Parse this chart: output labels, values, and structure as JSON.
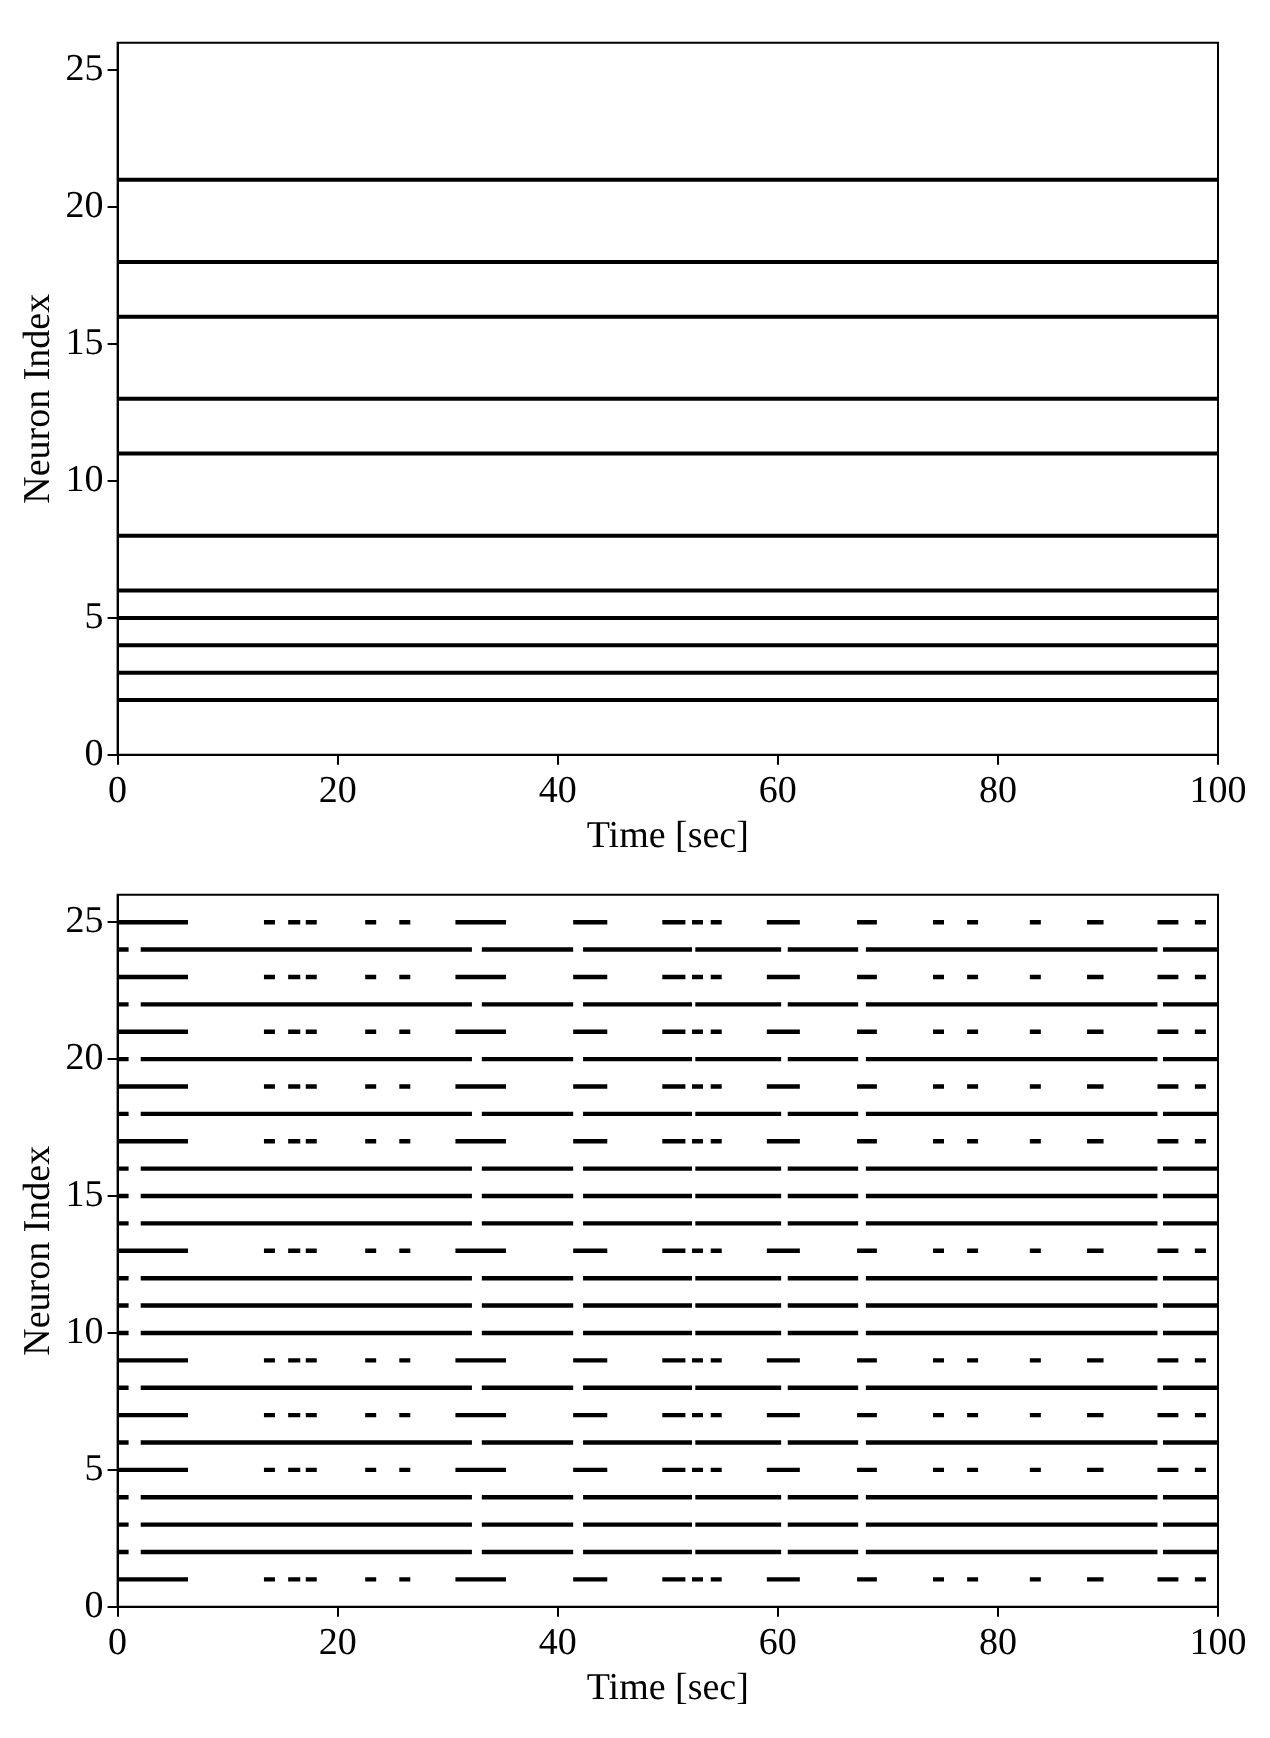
{
  "chart_data": [
    {
      "type": "line",
      "xlabel": "Time [sec]",
      "ylabel": "Neuron Index",
      "xlim": [
        0,
        100
      ],
      "xticks": [
        0,
        20,
        40,
        60,
        80,
        100
      ],
      "ylim": [
        0,
        26
      ],
      "yticks": [
        0,
        5,
        10,
        15,
        20,
        25
      ],
      "grid": false,
      "legend": false,
      "marker": "none",
      "line_style": "solid",
      "x": [
        0,
        100
      ],
      "series": [
        {
          "color": "#000000",
          "values": [
            2,
            2
          ]
        },
        {
          "color": "#000000",
          "values": [
            3,
            3
          ]
        },
        {
          "color": "#000000",
          "values": [
            4,
            4
          ]
        },
        {
          "color": "#000000",
          "values": [
            5,
            5
          ]
        },
        {
          "color": "#000000",
          "values": [
            6,
            6
          ]
        },
        {
          "color": "#000000",
          "values": [
            8,
            8
          ]
        },
        {
          "color": "#000000",
          "values": [
            11,
            11
          ]
        },
        {
          "color": "#000000",
          "values": [
            13,
            13
          ]
        },
        {
          "color": "#000000",
          "values": [
            16,
            16
          ]
        },
        {
          "color": "#000000",
          "values": [
            18,
            18
          ]
        },
        {
          "color": "#000000",
          "values": [
            21,
            21
          ]
        }
      ]
    },
    {
      "type": "line",
      "xlabel": "Time [sec]",
      "ylabel": "Neuron Index",
      "xlim": [
        0,
        100
      ],
      "xticks": [
        0,
        20,
        40,
        60,
        80,
        100
      ],
      "ylim": [
        0,
        26
      ],
      "yticks": [
        0,
        5,
        10,
        15,
        20,
        25
      ],
      "grid": false,
      "legend": false,
      "marker": "none",
      "line_style": "solid",
      "series": [
        {
          "color": "#000000",
          "x": [
            0,
            6.4,
            null,
            13.3,
            14.3,
            null,
            15.5,
            16.6,
            null,
            17.1,
            18.1,
            null,
            22.5,
            23.5,
            null,
            25.6,
            26.6,
            null,
            30.7,
            35.3,
            null,
            41.4,
            44.5,
            null,
            49.5,
            51.6,
            null,
            52.2,
            53.2,
            null,
            53.9,
            54.9,
            null,
            59,
            62,
            null,
            67.2,
            69,
            null,
            74.1,
            75.1,
            null,
            77.2,
            78.2,
            null,
            82.9,
            83.9,
            null,
            88.1,
            89.6,
            null,
            94.5,
            96.4,
            null,
            97.9,
            98.9
          ],
          "values": [
            1,
            1,
            null,
            1,
            1,
            null,
            1,
            1,
            null,
            1,
            1,
            null,
            1,
            1,
            null,
            1,
            1,
            null,
            1,
            1,
            null,
            1,
            1,
            null,
            1,
            1,
            null,
            1,
            1,
            null,
            1,
            1,
            null,
            1,
            1,
            null,
            1,
            1,
            null,
            1,
            1,
            null,
            1,
            1,
            null,
            1,
            1,
            null,
            1,
            1,
            null,
            1,
            1,
            null,
            1,
            1
          ]
        },
        {
          "color": "#000000",
          "x": [
            0,
            1,
            null,
            2.1,
            32.2,
            null,
            33.1,
            41.4,
            null,
            42.3,
            52.2,
            null,
            52.5,
            60.3,
            null,
            60.9,
            67.3,
            null,
            68,
            94.5,
            null,
            95,
            100
          ],
          "values": [
            2,
            2,
            null,
            2,
            2,
            null,
            2,
            2,
            null,
            2,
            2,
            null,
            2,
            2,
            null,
            2,
            2,
            null,
            2,
            2,
            null,
            2,
            2
          ]
        },
        {
          "color": "#000000",
          "x": [
            0,
            1,
            null,
            2.1,
            32.2,
            null,
            33.1,
            41.4,
            null,
            42.3,
            52.2,
            null,
            52.5,
            60.3,
            null,
            60.9,
            67.3,
            null,
            68,
            94.5,
            null,
            95,
            100
          ],
          "values": [
            3,
            3,
            null,
            3,
            3,
            null,
            3,
            3,
            null,
            3,
            3,
            null,
            3,
            3,
            null,
            3,
            3,
            null,
            3,
            3,
            null,
            3,
            3
          ]
        },
        {
          "color": "#000000",
          "x": [
            0,
            1,
            null,
            2.1,
            32.2,
            null,
            33.1,
            41.4,
            null,
            42.3,
            52.2,
            null,
            52.5,
            60.3,
            null,
            60.9,
            67.3,
            null,
            68,
            94.5,
            null,
            95,
            100
          ],
          "values": [
            4,
            4,
            null,
            4,
            4,
            null,
            4,
            4,
            null,
            4,
            4,
            null,
            4,
            4,
            null,
            4,
            4,
            null,
            4,
            4,
            null,
            4,
            4
          ]
        },
        {
          "color": "#000000",
          "x": [
            0,
            6.4,
            null,
            13.3,
            14.3,
            null,
            15.5,
            16.6,
            null,
            17.1,
            18.1,
            null,
            22.5,
            23.5,
            null,
            25.6,
            26.6,
            null,
            30.7,
            35.3,
            null,
            41.4,
            44.5,
            null,
            49.5,
            51.6,
            null,
            52.2,
            53.2,
            null,
            53.9,
            54.9,
            null,
            59,
            62,
            null,
            67.2,
            69,
            null,
            74.1,
            75.1,
            null,
            77.2,
            78.2,
            null,
            82.9,
            83.9,
            null,
            88.1,
            89.6,
            null,
            94.5,
            96.4,
            null,
            97.9,
            98.9
          ],
          "values": [
            5,
            5,
            null,
            5,
            5,
            null,
            5,
            5,
            null,
            5,
            5,
            null,
            5,
            5,
            null,
            5,
            5,
            null,
            5,
            5,
            null,
            5,
            5,
            null,
            5,
            5,
            null,
            5,
            5,
            null,
            5,
            5,
            null,
            5,
            5,
            null,
            5,
            5,
            null,
            5,
            5,
            null,
            5,
            5,
            null,
            5,
            5,
            null,
            5,
            5,
            null,
            5,
            5,
            null,
            5,
            5
          ]
        },
        {
          "color": "#000000",
          "x": [
            0,
            1,
            null,
            2.1,
            32.2,
            null,
            33.1,
            41.4,
            null,
            42.3,
            52.2,
            null,
            52.5,
            60.3,
            null,
            60.9,
            67.3,
            null,
            68,
            94.5,
            null,
            95,
            100
          ],
          "values": [
            6,
            6,
            null,
            6,
            6,
            null,
            6,
            6,
            null,
            6,
            6,
            null,
            6,
            6,
            null,
            6,
            6,
            null,
            6,
            6,
            null,
            6,
            6
          ]
        },
        {
          "color": "#000000",
          "x": [
            0,
            6.4,
            null,
            13.3,
            14.3,
            null,
            15.5,
            16.6,
            null,
            17.1,
            18.1,
            null,
            22.5,
            23.5,
            null,
            25.6,
            26.6,
            null,
            30.7,
            35.3,
            null,
            41.4,
            44.5,
            null,
            49.5,
            51.6,
            null,
            52.2,
            53.2,
            null,
            53.9,
            54.9,
            null,
            59,
            62,
            null,
            67.2,
            69,
            null,
            74.1,
            75.1,
            null,
            77.2,
            78.2,
            null,
            82.9,
            83.9,
            null,
            88.1,
            89.6,
            null,
            94.5,
            96.4,
            null,
            97.9,
            98.9
          ],
          "values": [
            7,
            7,
            null,
            7,
            7,
            null,
            7,
            7,
            null,
            7,
            7,
            null,
            7,
            7,
            null,
            7,
            7,
            null,
            7,
            7,
            null,
            7,
            7,
            null,
            7,
            7,
            null,
            7,
            7,
            null,
            7,
            7,
            null,
            7,
            7,
            null,
            7,
            7,
            null,
            7,
            7,
            null,
            7,
            7,
            null,
            7,
            7,
            null,
            7,
            7,
            null,
            7,
            7,
            null,
            7,
            7
          ]
        },
        {
          "color": "#000000",
          "x": [
            0,
            1,
            null,
            2.1,
            32.2,
            null,
            33.1,
            41.4,
            null,
            42.3,
            52.2,
            null,
            52.5,
            60.3,
            null,
            60.9,
            67.3,
            null,
            68,
            94.5,
            null,
            95,
            100
          ],
          "values": [
            8,
            8,
            null,
            8,
            8,
            null,
            8,
            8,
            null,
            8,
            8,
            null,
            8,
            8,
            null,
            8,
            8,
            null,
            8,
            8,
            null,
            8,
            8
          ]
        },
        {
          "color": "#000000",
          "x": [
            0,
            6.4,
            null,
            13.3,
            14.3,
            null,
            15.5,
            16.6,
            null,
            17.1,
            18.1,
            null,
            22.5,
            23.5,
            null,
            25.6,
            26.6,
            null,
            30.7,
            35.3,
            null,
            41.4,
            44.5,
            null,
            49.5,
            51.6,
            null,
            52.2,
            53.2,
            null,
            53.9,
            54.9,
            null,
            59,
            62,
            null,
            67.2,
            69,
            null,
            74.1,
            75.1,
            null,
            77.2,
            78.2,
            null,
            82.9,
            83.9,
            null,
            88.1,
            89.6,
            null,
            94.5,
            96.4,
            null,
            97.9,
            98.9
          ],
          "values": [
            9,
            9,
            null,
            9,
            9,
            null,
            9,
            9,
            null,
            9,
            9,
            null,
            9,
            9,
            null,
            9,
            9,
            null,
            9,
            9,
            null,
            9,
            9,
            null,
            9,
            9,
            null,
            9,
            9,
            null,
            9,
            9,
            null,
            9,
            9,
            null,
            9,
            9,
            null,
            9,
            9,
            null,
            9,
            9,
            null,
            9,
            9,
            null,
            9,
            9,
            null,
            9,
            9,
            null,
            9,
            9
          ]
        },
        {
          "color": "#000000",
          "x": [
            0,
            1,
            null,
            2.1,
            32.2,
            null,
            33.1,
            41.4,
            null,
            42.3,
            52.2,
            null,
            52.5,
            60.3,
            null,
            60.9,
            67.3,
            null,
            68,
            94.5,
            null,
            95,
            100
          ],
          "values": [
            10,
            10,
            null,
            10,
            10,
            null,
            10,
            10,
            null,
            10,
            10,
            null,
            10,
            10,
            null,
            10,
            10,
            null,
            10,
            10,
            null,
            10,
            10
          ]
        },
        {
          "color": "#000000",
          "x": [
            0,
            1,
            null,
            2.1,
            32.2,
            null,
            33.1,
            41.4,
            null,
            42.3,
            52.2,
            null,
            52.5,
            60.3,
            null,
            60.9,
            67.3,
            null,
            68,
            94.5,
            null,
            95,
            100
          ],
          "values": [
            11,
            11,
            null,
            11,
            11,
            null,
            11,
            11,
            null,
            11,
            11,
            null,
            11,
            11,
            null,
            11,
            11,
            null,
            11,
            11,
            null,
            11,
            11
          ]
        },
        {
          "color": "#000000",
          "x": [
            0,
            1,
            null,
            2.1,
            32.2,
            null,
            33.1,
            41.4,
            null,
            42.3,
            52.2,
            null,
            52.5,
            60.3,
            null,
            60.9,
            67.3,
            null,
            68,
            94.5,
            null,
            95,
            100
          ],
          "values": [
            12,
            12,
            null,
            12,
            12,
            null,
            12,
            12,
            null,
            12,
            12,
            null,
            12,
            12,
            null,
            12,
            12,
            null,
            12,
            12,
            null,
            12,
            12
          ]
        },
        {
          "color": "#000000",
          "x": [
            0,
            6.4,
            null,
            13.3,
            14.3,
            null,
            15.5,
            16.6,
            null,
            17.1,
            18.1,
            null,
            22.5,
            23.5,
            null,
            25.6,
            26.6,
            null,
            30.7,
            35.3,
            null,
            41.4,
            44.5,
            null,
            49.5,
            51.6,
            null,
            52.2,
            53.2,
            null,
            53.9,
            54.9,
            null,
            59,
            62,
            null,
            67.2,
            69,
            null,
            74.1,
            75.1,
            null,
            77.2,
            78.2,
            null,
            82.9,
            83.9,
            null,
            88.1,
            89.6,
            null,
            94.5,
            96.4,
            null,
            97.9,
            98.9
          ],
          "values": [
            13,
            13,
            null,
            13,
            13,
            null,
            13,
            13,
            null,
            13,
            13,
            null,
            13,
            13,
            null,
            13,
            13,
            null,
            13,
            13,
            null,
            13,
            13,
            null,
            13,
            13,
            null,
            13,
            13,
            null,
            13,
            13,
            null,
            13,
            13,
            null,
            13,
            13,
            null,
            13,
            13,
            null,
            13,
            13,
            null,
            13,
            13,
            null,
            13,
            13,
            null,
            13,
            13,
            null,
            13,
            13
          ]
        },
        {
          "color": "#000000",
          "x": [
            0,
            1,
            null,
            2.1,
            32.2,
            null,
            33.1,
            41.4,
            null,
            42.3,
            52.2,
            null,
            52.5,
            60.3,
            null,
            60.9,
            67.3,
            null,
            68,
            94.5,
            null,
            95,
            100
          ],
          "values": [
            14,
            14,
            null,
            14,
            14,
            null,
            14,
            14,
            null,
            14,
            14,
            null,
            14,
            14,
            null,
            14,
            14,
            null,
            14,
            14,
            null,
            14,
            14
          ]
        },
        {
          "color": "#000000",
          "x": [
            0,
            1,
            null,
            2.1,
            32.2,
            null,
            33.1,
            41.4,
            null,
            42.3,
            52.2,
            null,
            52.5,
            60.3,
            null,
            60.9,
            67.3,
            null,
            68,
            94.5,
            null,
            95,
            100
          ],
          "values": [
            15,
            15,
            null,
            15,
            15,
            null,
            15,
            15,
            null,
            15,
            15,
            null,
            15,
            15,
            null,
            15,
            15,
            null,
            15,
            15,
            null,
            15,
            15
          ]
        },
        {
          "color": "#000000",
          "x": [
            0,
            1,
            null,
            2.1,
            32.2,
            null,
            33.1,
            41.4,
            null,
            42.3,
            52.2,
            null,
            52.5,
            60.3,
            null,
            60.9,
            67.3,
            null,
            68,
            94.5,
            null,
            95,
            100
          ],
          "values": [
            16,
            16,
            null,
            16,
            16,
            null,
            16,
            16,
            null,
            16,
            16,
            null,
            16,
            16,
            null,
            16,
            16,
            null,
            16,
            16,
            null,
            16,
            16
          ]
        },
        {
          "color": "#000000",
          "x": [
            0,
            6.4,
            null,
            13.3,
            14.3,
            null,
            15.5,
            16.6,
            null,
            17.1,
            18.1,
            null,
            22.5,
            23.5,
            null,
            25.6,
            26.6,
            null,
            30.7,
            35.3,
            null,
            41.4,
            44.5,
            null,
            49.5,
            51.6,
            null,
            52.2,
            53.2,
            null,
            53.9,
            54.9,
            null,
            59,
            62,
            null,
            67.2,
            69,
            null,
            74.1,
            75.1,
            null,
            77.2,
            78.2,
            null,
            82.9,
            83.9,
            null,
            88.1,
            89.6,
            null,
            94.5,
            96.4,
            null,
            97.9,
            98.9
          ],
          "values": [
            17,
            17,
            null,
            17,
            17,
            null,
            17,
            17,
            null,
            17,
            17,
            null,
            17,
            17,
            null,
            17,
            17,
            null,
            17,
            17,
            null,
            17,
            17,
            null,
            17,
            17,
            null,
            17,
            17,
            null,
            17,
            17,
            null,
            17,
            17,
            null,
            17,
            17,
            null,
            17,
            17,
            null,
            17,
            17,
            null,
            17,
            17,
            null,
            17,
            17,
            null,
            17,
            17,
            null,
            17,
            17
          ]
        },
        {
          "color": "#000000",
          "x": [
            0,
            1,
            null,
            2.1,
            32.2,
            null,
            33.1,
            41.4,
            null,
            42.3,
            52.2,
            null,
            52.5,
            60.3,
            null,
            60.9,
            67.3,
            null,
            68,
            94.5,
            null,
            95,
            100
          ],
          "values": [
            18,
            18,
            null,
            18,
            18,
            null,
            18,
            18,
            null,
            18,
            18,
            null,
            18,
            18,
            null,
            18,
            18,
            null,
            18,
            18,
            null,
            18,
            18
          ]
        },
        {
          "color": "#000000",
          "x": [
            0,
            6.4,
            null,
            13.3,
            14.3,
            null,
            15.5,
            16.6,
            null,
            17.1,
            18.1,
            null,
            22.5,
            23.5,
            null,
            25.6,
            26.6,
            null,
            30.7,
            35.3,
            null,
            41.4,
            44.5,
            null,
            49.5,
            51.6,
            null,
            52.2,
            53.2,
            null,
            53.9,
            54.9,
            null,
            59,
            62,
            null,
            67.2,
            69,
            null,
            74.1,
            75.1,
            null,
            77.2,
            78.2,
            null,
            82.9,
            83.9,
            null,
            88.1,
            89.6,
            null,
            94.5,
            96.4,
            null,
            97.9,
            98.9
          ],
          "values": [
            19,
            19,
            null,
            19,
            19,
            null,
            19,
            19,
            null,
            19,
            19,
            null,
            19,
            19,
            null,
            19,
            19,
            null,
            19,
            19,
            null,
            19,
            19,
            null,
            19,
            19,
            null,
            19,
            19,
            null,
            19,
            19,
            null,
            19,
            19,
            null,
            19,
            19,
            null,
            19,
            19,
            null,
            19,
            19,
            null,
            19,
            19,
            null,
            19,
            19,
            null,
            19,
            19,
            null,
            19,
            19
          ]
        },
        {
          "color": "#000000",
          "x": [
            0,
            1,
            null,
            2.1,
            32.2,
            null,
            33.1,
            41.4,
            null,
            42.3,
            52.2,
            null,
            52.5,
            60.3,
            null,
            60.9,
            67.3,
            null,
            68,
            94.5,
            null,
            95,
            100
          ],
          "values": [
            20,
            20,
            null,
            20,
            20,
            null,
            20,
            20,
            null,
            20,
            20,
            null,
            20,
            20,
            null,
            20,
            20,
            null,
            20,
            20,
            null,
            20,
            20
          ]
        },
        {
          "color": "#000000",
          "x": [
            0,
            6.4,
            null,
            13.3,
            14.3,
            null,
            15.5,
            16.6,
            null,
            17.1,
            18.1,
            null,
            22.5,
            23.5,
            null,
            25.6,
            26.6,
            null,
            30.7,
            35.3,
            null,
            41.4,
            44.5,
            null,
            49.5,
            51.6,
            null,
            52.2,
            53.2,
            null,
            53.9,
            54.9,
            null,
            59,
            62,
            null,
            67.2,
            69,
            null,
            74.1,
            75.1,
            null,
            77.2,
            78.2,
            null,
            82.9,
            83.9,
            null,
            88.1,
            89.6,
            null,
            94.5,
            96.4,
            null,
            97.9,
            98.9
          ],
          "values": [
            21,
            21,
            null,
            21,
            21,
            null,
            21,
            21,
            null,
            21,
            21,
            null,
            21,
            21,
            null,
            21,
            21,
            null,
            21,
            21,
            null,
            21,
            21,
            null,
            21,
            21,
            null,
            21,
            21,
            null,
            21,
            21,
            null,
            21,
            21,
            null,
            21,
            21,
            null,
            21,
            21,
            null,
            21,
            21,
            null,
            21,
            21,
            null,
            21,
            21,
            null,
            21,
            21,
            null,
            21,
            21
          ]
        },
        {
          "color": "#000000",
          "x": [
            0,
            1,
            null,
            2.1,
            32.2,
            null,
            33.1,
            41.4,
            null,
            42.3,
            52.2,
            null,
            52.5,
            60.3,
            null,
            60.9,
            67.3,
            null,
            68,
            94.5,
            null,
            95,
            100
          ],
          "values": [
            22,
            22,
            null,
            22,
            22,
            null,
            22,
            22,
            null,
            22,
            22,
            null,
            22,
            22,
            null,
            22,
            22,
            null,
            22,
            22,
            null,
            22,
            22
          ]
        },
        {
          "color": "#000000",
          "x": [
            0,
            6.4,
            null,
            13.3,
            14.3,
            null,
            15.5,
            16.6,
            null,
            17.1,
            18.1,
            null,
            22.5,
            23.5,
            null,
            25.6,
            26.6,
            null,
            30.7,
            35.3,
            null,
            41.4,
            44.5,
            null,
            49.5,
            51.6,
            null,
            52.2,
            53.2,
            null,
            53.9,
            54.9,
            null,
            59,
            62,
            null,
            67.2,
            69,
            null,
            74.1,
            75.1,
            null,
            77.2,
            78.2,
            null,
            82.9,
            83.9,
            null,
            88.1,
            89.6,
            null,
            94.5,
            96.4,
            null,
            97.9,
            98.9
          ],
          "values": [
            23,
            23,
            null,
            23,
            23,
            null,
            23,
            23,
            null,
            23,
            23,
            null,
            23,
            23,
            null,
            23,
            23,
            null,
            23,
            23,
            null,
            23,
            23,
            null,
            23,
            23,
            null,
            23,
            23,
            null,
            23,
            23,
            null,
            23,
            23,
            null,
            23,
            23,
            null,
            23,
            23,
            null,
            23,
            23,
            null,
            23,
            23,
            null,
            23,
            23,
            null,
            23,
            23,
            null,
            23,
            23
          ]
        },
        {
          "color": "#000000",
          "x": [
            0,
            1,
            null,
            2.1,
            32.2,
            null,
            33.1,
            41.4,
            null,
            42.3,
            52.2,
            null,
            52.5,
            60.3,
            null,
            60.9,
            67.3,
            null,
            68,
            94.5,
            null,
            95,
            100
          ],
          "values": [
            24,
            24,
            null,
            24,
            24,
            null,
            24,
            24,
            null,
            24,
            24,
            null,
            24,
            24,
            null,
            24,
            24,
            null,
            24,
            24,
            null,
            24,
            24
          ]
        },
        {
          "color": "#000000",
          "x": [
            0,
            6.4,
            null,
            13.3,
            14.3,
            null,
            15.5,
            16.6,
            null,
            17.1,
            18.1,
            null,
            22.5,
            23.5,
            null,
            25.6,
            26.6,
            null,
            30.7,
            35.3,
            null,
            41.4,
            44.5,
            null,
            49.5,
            51.6,
            null,
            52.2,
            53.2,
            null,
            53.9,
            54.9,
            null,
            59,
            62,
            null,
            67.2,
            69,
            null,
            74.1,
            75.1,
            null,
            77.2,
            78.2,
            null,
            82.9,
            83.9,
            null,
            88.1,
            89.6,
            null,
            94.5,
            96.4,
            null,
            97.9,
            98.9
          ],
          "values": [
            25,
            25,
            null,
            25,
            25,
            null,
            25,
            25,
            null,
            25,
            25,
            null,
            25,
            25,
            null,
            25,
            25,
            null,
            25,
            25,
            null,
            25,
            25,
            null,
            25,
            25,
            null,
            25,
            25,
            null,
            25,
            25,
            null,
            25,
            25,
            null,
            25,
            25,
            null,
            25,
            25,
            null,
            25,
            25,
            null,
            25,
            25,
            null,
            25,
            25,
            null,
            25,
            25,
            null,
            25,
            25
          ]
        }
      ]
    }
  ]
}
